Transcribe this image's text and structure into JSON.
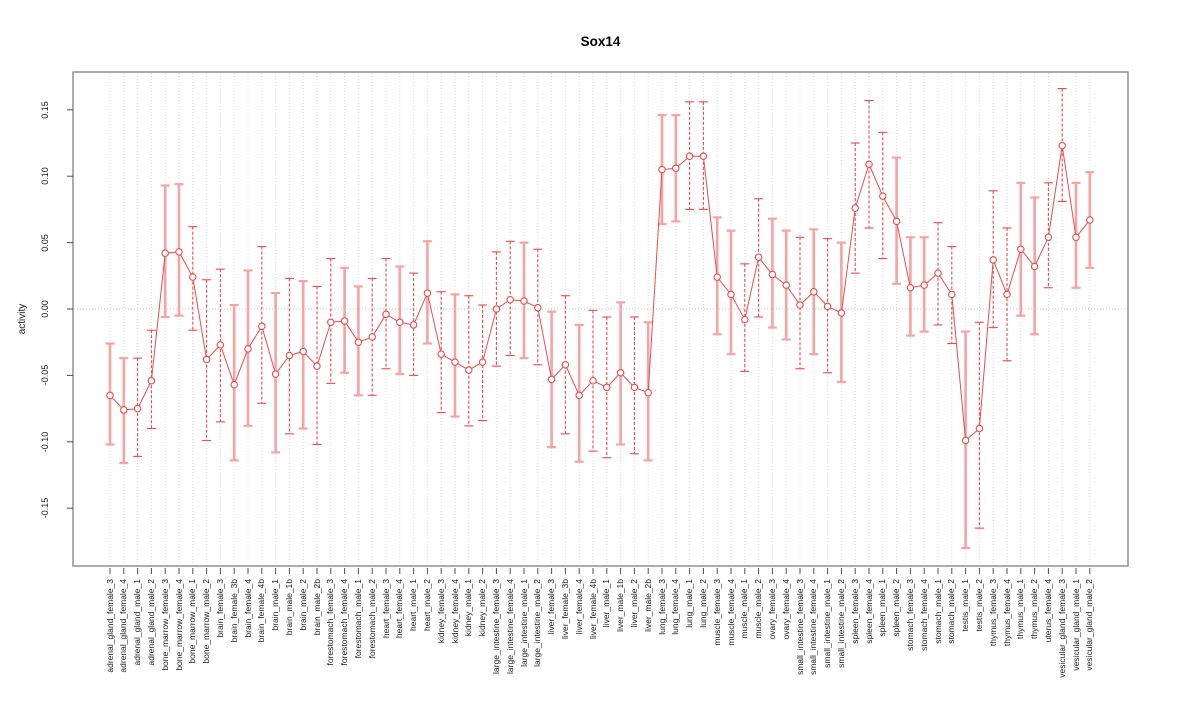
{
  "chart_data": {
    "type": "line-errorbar",
    "title": "Sox14",
    "xlabel": "",
    "ylabel": "activity",
    "ylim": [
      -0.197,
      0.18
    ],
    "grid": "vertical-dotted-per-category",
    "legend": "none",
    "y_ticks": {
      "values": [
        -0.15,
        -0.1,
        -0.05,
        0.0,
        0.05,
        0.1,
        0.15
      ],
      "labels": [
        "-0.15",
        "-0.10",
        "-0.05",
        "0.00",
        "0.05",
        "0.10",
        "0.15"
      ]
    },
    "zero_reference_line": 0.0,
    "categories": [
      "adrenal_gland_female_3",
      "adrenal_gland_female_4",
      "adrenal_gland_male_1",
      "adrenal_gland_male_2",
      "bone_marrow_female_3",
      "bone_marrow_female_4",
      "bone_marrow_male_1",
      "bone_marrow_male_2",
      "brain_female_3",
      "brain_female_3b",
      "brain_female_4",
      "brain_female_4b",
      "brain_male_1",
      "brain_male_1b",
      "brain_male_2",
      "brain_male_2b",
      "forestomach_female_3",
      "forestomach_female_4",
      "forestomach_male_1",
      "forestomach_male_2",
      "heart_female_3",
      "heart_female_4",
      "heart_male_1",
      "heart_male_2",
      "kidney_female_3",
      "kidney_female_4",
      "kidney_male_1",
      "kidney_male_2",
      "large_intestine_female_3",
      "large_intestine_female_4",
      "large_intestine_male_1",
      "large_intestine_male_2",
      "liver_female_3",
      "liver_female_3b",
      "liver_female_4",
      "liver_female_4b",
      "liver_male_1",
      "liver_male_1b",
      "liver_male_2",
      "liver_male_2b",
      "lung_female_3",
      "lung_female_4",
      "lung_male_1",
      "lung_male_2",
      "muscle_female_3",
      "muscle_female_4",
      "muscle_male_1",
      "muscle_male_2",
      "ovary_female_3",
      "ovary_female_4",
      "small_intestine_female_3",
      "small_intestine_female_4",
      "small_intestine_male_1",
      "small_intestine_male_2",
      "spleen_female_3",
      "spleen_female_4",
      "spleen_male_1",
      "spleen_male_2",
      "stomach_female_3",
      "stomach_female_4",
      "stomach_male_1",
      "stomach_male_2",
      "testis_male_1",
      "testis_male_2",
      "thymus_female_3",
      "thymus_female_4",
      "thymus_male_1",
      "thymus_male_2",
      "uterus_female_4",
      "vesicular_gland_female_3",
      "vesicular_gland_male_1",
      "vesicular_gland_male_2"
    ],
    "series": [
      {
        "name": "activity",
        "values": [
          -0.065,
          -0.076,
          -0.075,
          -0.054,
          0.042,
          0.043,
          0.024,
          -0.038,
          -0.027,
          -0.057,
          -0.03,
          -0.013,
          -0.049,
          -0.035,
          -0.032,
          -0.043,
          -0.01,
          -0.009,
          -0.025,
          -0.021,
          -0.004,
          -0.01,
          -0.012,
          0.012,
          -0.034,
          -0.04,
          -0.046,
          -0.04,
          0.0,
          0.007,
          0.006,
          0.001,
          -0.053,
          -0.042,
          -0.065,
          -0.054,
          -0.059,
          -0.048,
          -0.059,
          -0.063,
          0.105,
          0.106,
          0.115,
          0.115,
          0.024,
          0.011,
          -0.008,
          0.039,
          0.026,
          0.018,
          0.003,
          0.013,
          0.002,
          -0.003,
          0.076,
          0.109,
          0.085,
          0.066,
          0.016,
          0.018,
          0.027,
          0.011,
          -0.099,
          -0.09,
          0.037,
          0.011,
          0.045,
          0.032,
          0.054,
          0.123,
          0.054,
          0.067
        ],
        "ci_low": [
          -0.102,
          -0.116,
          -0.111,
          -0.09,
          -0.006,
          -0.005,
          -0.016,
          -0.099,
          -0.085,
          -0.114,
          -0.088,
          -0.071,
          -0.108,
          -0.094,
          -0.09,
          -0.102,
          -0.056,
          -0.048,
          -0.065,
          -0.065,
          -0.045,
          -0.049,
          -0.05,
          -0.026,
          -0.078,
          -0.081,
          -0.088,
          -0.084,
          -0.043,
          -0.035,
          -0.037,
          -0.042,
          -0.104,
          -0.094,
          -0.115,
          -0.107,
          -0.112,
          -0.102,
          -0.109,
          -0.114,
          0.064,
          0.066,
          0.075,
          0.075,
          -0.019,
          -0.034,
          -0.047,
          -0.006,
          -0.014,
          -0.023,
          -0.045,
          -0.034,
          -0.048,
          -0.055,
          0.027,
          0.061,
          0.038,
          0.019,
          -0.02,
          -0.017,
          -0.012,
          -0.026,
          -0.18,
          -0.165,
          -0.014,
          -0.039,
          -0.005,
          -0.019,
          0.016,
          0.081,
          0.016,
          0.031
        ],
        "ci_high": [
          -0.026,
          -0.037,
          -0.037,
          -0.016,
          0.093,
          0.094,
          0.062,
          0.022,
          0.03,
          0.003,
          0.029,
          0.047,
          0.012,
          0.023,
          0.021,
          0.017,
          0.038,
          0.031,
          0.017,
          0.023,
          0.038,
          0.032,
          0.027,
          0.051,
          0.013,
          0.011,
          0.01,
          0.003,
          0.043,
          0.051,
          0.05,
          0.045,
          -0.002,
          0.01,
          -0.012,
          -0.001,
          -0.006,
          0.005,
          -0.006,
          -0.01,
          0.146,
          0.146,
          0.156,
          0.156,
          0.069,
          0.059,
          0.034,
          0.083,
          0.068,
          0.059,
          0.054,
          0.06,
          0.053,
          0.05,
          0.125,
          0.157,
          0.133,
          0.114,
          0.054,
          0.054,
          0.065,
          0.047,
          -0.017,
          -0.01,
          0.089,
          0.061,
          0.095,
          0.084,
          0.095,
          0.166,
          0.095,
          0.103
        ],
        "bar_styles": [
          "solid",
          "solid",
          "dashed",
          "dashed",
          "solid",
          "solid",
          "dashed",
          "dashed",
          "dashed",
          "solid",
          "solid",
          "dashed",
          "solid",
          "dashed",
          "solid",
          "dashed",
          "dashed",
          "solid",
          "solid",
          "dashed",
          "dashed",
          "solid",
          "dashed",
          "solid",
          "dashed",
          "solid",
          "dashed",
          "dashed",
          "dashed",
          "dashed",
          "solid",
          "dashed",
          "solid",
          "dashed",
          "solid",
          "dashed",
          "dashed",
          "solid",
          "dashed",
          "solid",
          "solid",
          "solid",
          "dashed",
          "dashed",
          "solid",
          "solid",
          "dashed",
          "dashed",
          "solid",
          "solid",
          "dashed",
          "solid",
          "dashed",
          "solid",
          "dashed",
          "dashed",
          "dashed",
          "solid",
          "solid",
          "solid",
          "dashed",
          "dashed",
          "solid",
          "dashed",
          "dashed",
          "dashed",
          "solid",
          "solid",
          "dashed",
          "dashed",
          "solid",
          "solid"
        ]
      }
    ],
    "colors": {
      "point": "#e84c4c",
      "line": "#e84c4c",
      "bar_solid": "#f5a3a3",
      "grid": "#d8d8d8",
      "zero_line": "#c9c9c9",
      "box": "#808080",
      "tick": "#4d4d4d",
      "text": "#1a1a1a"
    }
  }
}
